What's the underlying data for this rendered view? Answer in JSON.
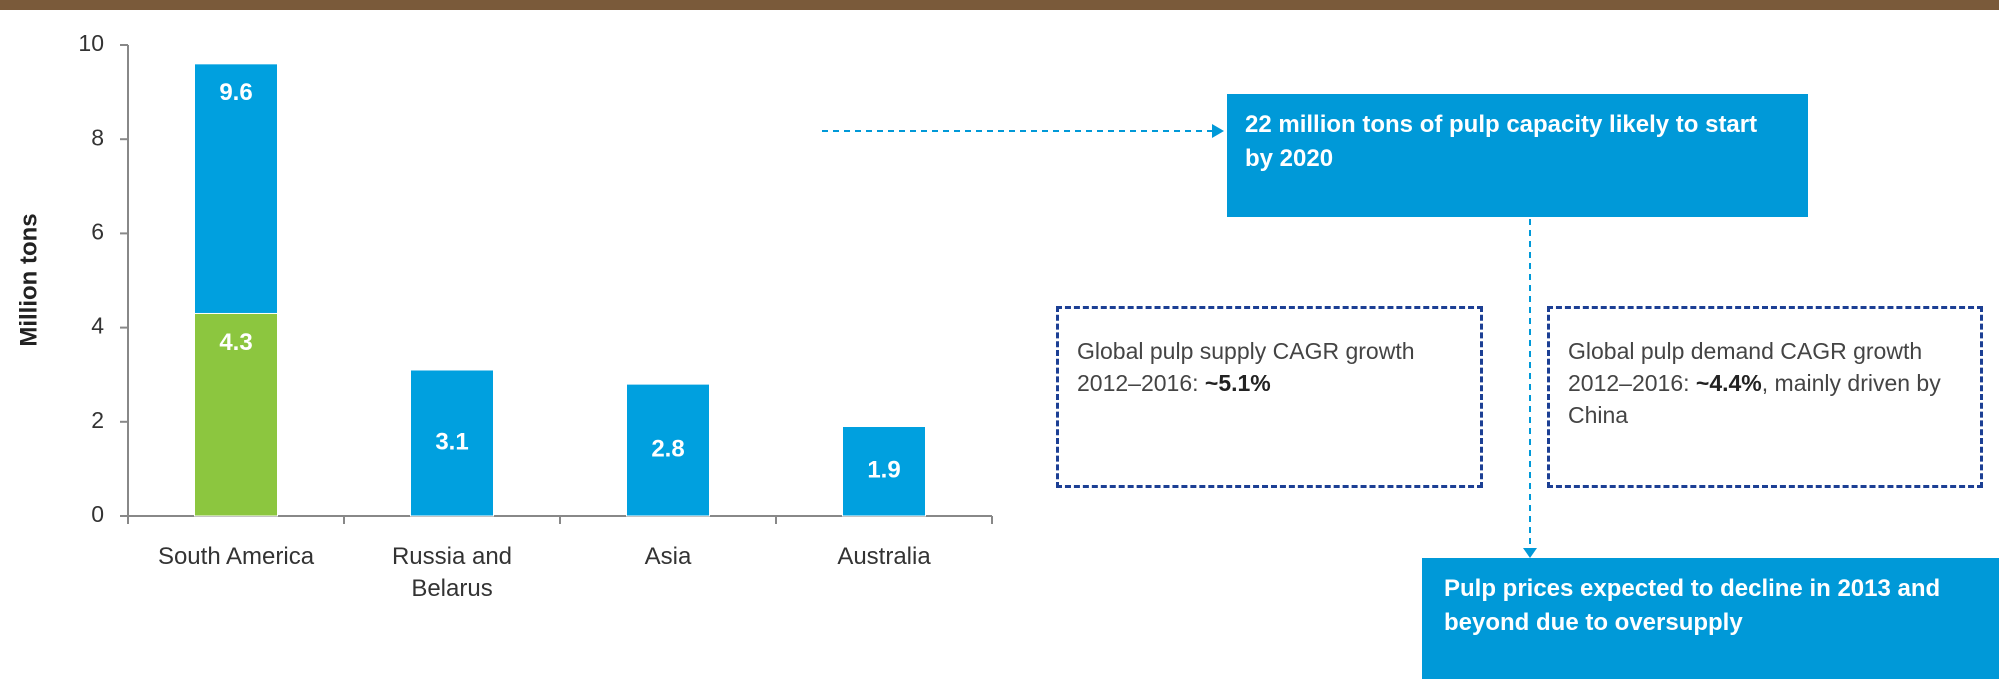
{
  "chart_data": {
    "type": "bar",
    "overlay": true,
    "y_label": "Million tons",
    "categories": [
      "South America",
      "Russia and\nBelarus",
      "Asia",
      "Australia"
    ],
    "series": [
      {
        "color": "#00a0df",
        "values": [
          9.6,
          3.1,
          2.8,
          1.9
        ]
      },
      {
        "color": "#8cc63f",
        "values": [
          4.3,
          null,
          null,
          null
        ]
      }
    ],
    "ylim": [
      0,
      10
    ],
    "yticks": [
      0,
      2,
      4,
      6,
      8,
      10
    ],
    "grid": false
  },
  "annotations": [
    {
      "text": "22 million tons of pulp capacity likely to start by 2020"
    },
    {
      "text": "Global pulp supply CAGR growth 2012–2016:",
      "highlight": "~5.1%"
    },
    {
      "text": "Global pulp demand CAGR growth 2012–2016:",
      "highlight": "~4.4%",
      "note": ", mainly driven by China"
    },
    {
      "text": "Pulp prices expected to decline in 2013 and beyond due to oversupply"
    }
  ]
}
